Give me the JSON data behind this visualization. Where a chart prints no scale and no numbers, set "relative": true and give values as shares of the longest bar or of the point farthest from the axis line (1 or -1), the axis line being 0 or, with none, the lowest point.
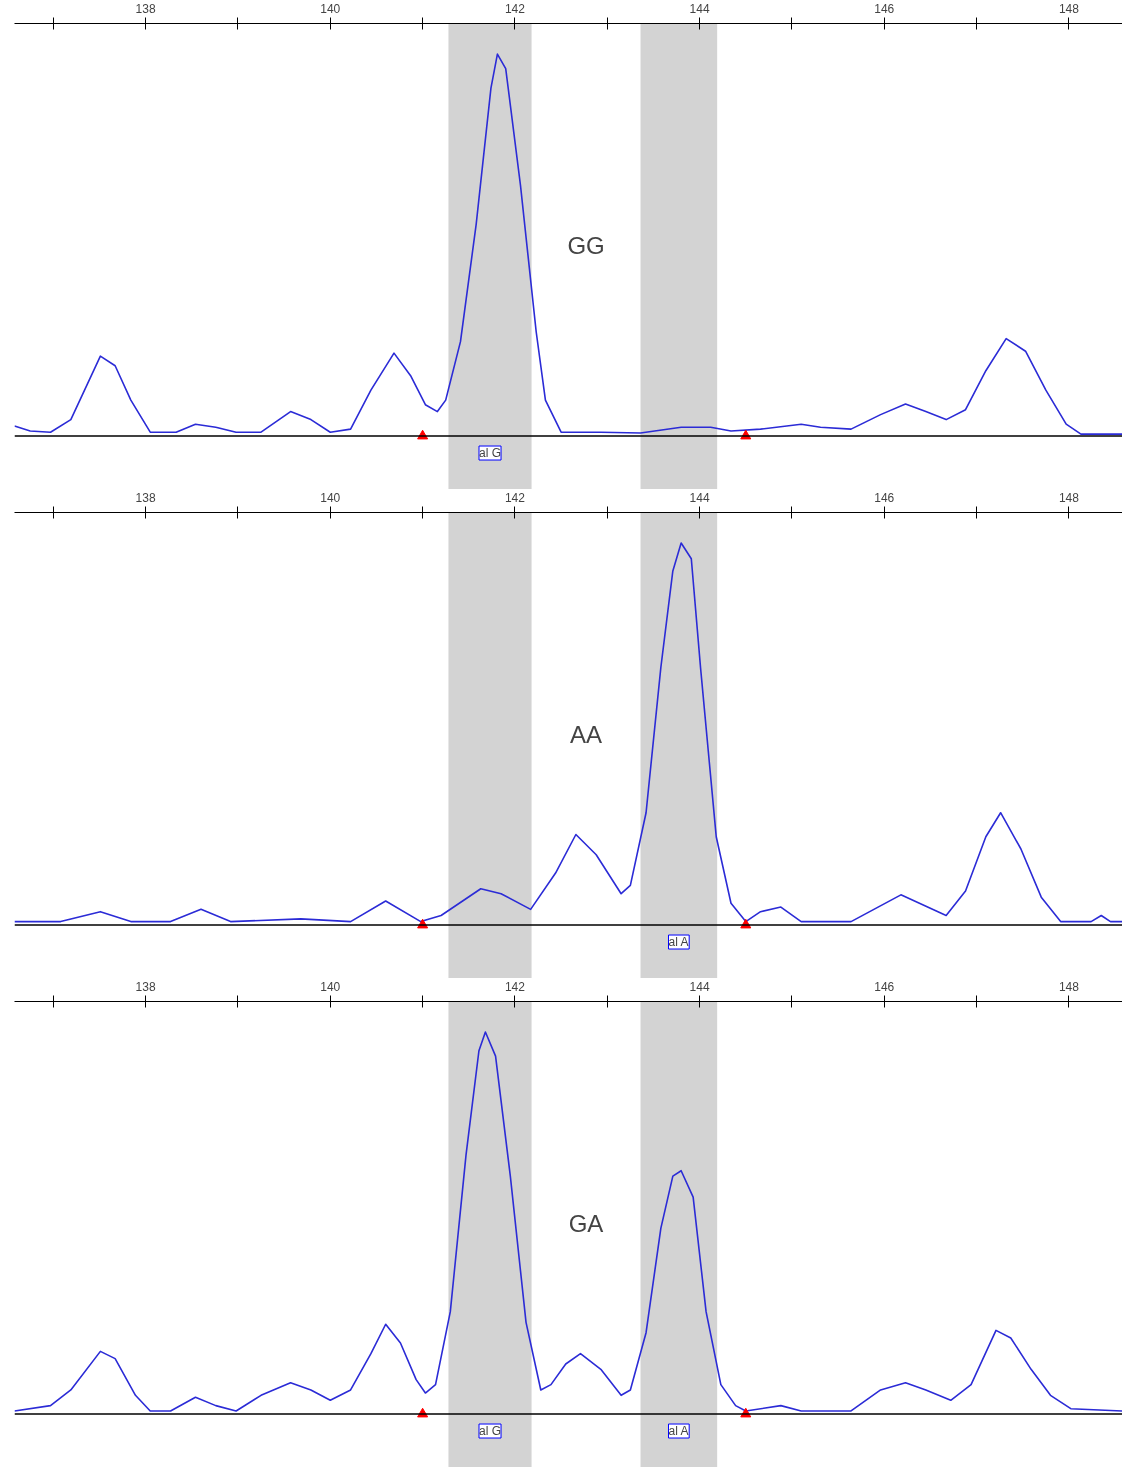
{
  "chart_data": [
    {
      "type": "line",
      "relative": true,
      "xlim": [
        136.58,
        148.58
      ],
      "xticks": [
        138,
        140,
        142,
        144,
        146,
        148
      ],
      "bands": [
        {
          "axis": "x",
          "from": 141.28,
          "to": 142.18,
          "color": "#d3d3d3",
          "label": "al G"
        },
        {
          "axis": "x",
          "from": 143.36,
          "to": 144.19,
          "color": "#d3d3d3"
        }
      ],
      "series": [
        {
          "color": "#2b2bd6",
          "x": [
            136.58,
            136.75,
            136.97,
            137.19,
            137.51,
            137.67,
            137.84,
            138.05,
            138.33,
            138.54,
            138.76,
            138.98,
            139.25,
            139.57,
            139.79,
            140.0,
            140.22,
            140.44,
            140.69,
            140.87,
            141.03,
            141.16,
            141.25,
            141.41,
            141.58,
            141.74,
            141.81,
            141.9,
            142.06,
            142.23,
            142.33,
            142.5,
            142.93,
            143.36,
            143.8,
            144.12,
            144.34,
            144.66,
            145.1,
            145.31,
            145.64,
            145.96,
            146.23,
            146.45,
            146.67,
            146.88,
            147.1,
            147.32,
            147.53,
            147.75,
            147.97,
            148.13,
            148.58
          ],
          "values": [
            0.026,
            0.013,
            0.01,
            0.043,
            0.209,
            0.184,
            0.094,
            0.01,
            0.01,
            0.031,
            0.023,
            0.01,
            0.01,
            0.064,
            0.043,
            0.01,
            0.018,
            0.12,
            0.217,
            0.158,
            0.082,
            0.064,
            0.094,
            0.247,
            0.554,
            0.911,
            1,
            0.962,
            0.656,
            0.273,
            0.094,
            0.01,
            0.01,
            0.008,
            0.023,
            0.023,
            0.013,
            0.018,
            0.031,
            0.023,
            0.018,
            0.056,
            0.084,
            0.064,
            0.043,
            0.069,
            0.171,
            0.255,
            0.222,
            0.12,
            0.031,
            0.005,
            0.005
          ]
        },
        {
          "type": "scatter",
          "color": "#ff0000",
          "marker": "triangle",
          "x": [
            141.0,
            144.5
          ],
          "values": [
            0,
            0
          ]
        }
      ],
      "annotations": [
        "GG"
      ]
    },
    {
      "type": "line",
      "relative": true,
      "xlim": [
        136.58,
        148.58
      ],
      "xticks": [
        138,
        140,
        142,
        144,
        146,
        148
      ],
      "bands": [
        {
          "axis": "x",
          "from": 141.28,
          "to": 142.18,
          "color": "#d3d3d3"
        },
        {
          "axis": "x",
          "from": 143.36,
          "to": 144.19,
          "color": "#d3d3d3",
          "label": "al A"
        }
      ],
      "series": [
        {
          "color": "#2b2bd6",
          "x": [
            136.58,
            137.08,
            137.51,
            137.84,
            138.27,
            138.6,
            138.92,
            139.68,
            140.22,
            140.6,
            140.98,
            141.2,
            141.63,
            141.85,
            142.17,
            142.44,
            142.66,
            142.88,
            143.15,
            143.25,
            143.42,
            143.58,
            143.71,
            143.8,
            143.91,
            144.01,
            144.18,
            144.34,
            144.5,
            144.66,
            144.88,
            145.1,
            145.64,
            146.18,
            146.67,
            146.88,
            147.1,
            147.26,
            147.48,
            147.7,
            147.91,
            148.24,
            148.35,
            148.45,
            148.58
          ],
          "values": [
            0.009,
            0.009,
            0.035,
            0.009,
            0.009,
            0.041,
            0.009,
            0.016,
            0.009,
            0.063,
            0.009,
            0.025,
            0.095,
            0.082,
            0.041,
            0.136,
            0.237,
            0.184,
            0.082,
            0.104,
            0.294,
            0.674,
            0.927,
            1,
            0.959,
            0.674,
            0.231,
            0.057,
            0.009,
            0.035,
            0.047,
            0.009,
            0.009,
            0.079,
            0.025,
            0.089,
            0.231,
            0.294,
            0.199,
            0.073,
            0.009,
            0.009,
            0.025,
            0.009,
            0.009
          ]
        },
        {
          "type": "scatter",
          "color": "#ff0000",
          "marker": "triangle",
          "x": [
            141.0,
            144.5
          ],
          "values": [
            0,
            0
          ]
        }
      ],
      "annotations": [
        "AA"
      ]
    },
    {
      "type": "line",
      "relative": true,
      "xlim": [
        136.58,
        148.58
      ],
      "xticks": [
        138,
        140,
        142,
        144,
        146,
        148
      ],
      "bands": [
        {
          "axis": "x",
          "from": 141.28,
          "to": 142.18,
          "color": "#d3d3d3",
          "label": "al G"
        },
        {
          "axis": "x",
          "from": 143.36,
          "to": 144.19,
          "color": "#d3d3d3",
          "label": "al A"
        }
      ],
      "series": [
        {
          "color": "#2b2bd6",
          "x": [
            136.58,
            136.97,
            137.19,
            137.51,
            137.67,
            137.89,
            138.05,
            138.27,
            138.54,
            138.76,
            138.98,
            139.25,
            139.57,
            139.79,
            140.0,
            140.22,
            140.44,
            140.6,
            140.76,
            140.93,
            141.03,
            141.14,
            141.3,
            141.47,
            141.61,
            141.68,
            141.79,
            141.95,
            142.12,
            142.28,
            142.39,
            142.55,
            142.71,
            142.93,
            143.15,
            143.25,
            143.42,
            143.58,
            143.71,
            143.8,
            143.93,
            144.07,
            144.23,
            144.39,
            144.5,
            144.88,
            145.1,
            145.64,
            145.96,
            146.23,
            146.45,
            146.72,
            146.94,
            147.21,
            147.37,
            147.59,
            147.8,
            148.02,
            148.58
          ],
          "values": [
            0.008,
            0.022,
            0.063,
            0.164,
            0.145,
            0.049,
            0.008,
            0.008,
            0.044,
            0.022,
            0.008,
            0.049,
            0.082,
            0.063,
            0.036,
            0.063,
            0.158,
            0.235,
            0.186,
            0.09,
            0.055,
            0.077,
            0.268,
            0.678,
            0.951,
            1,
            0.937,
            0.623,
            0.24,
            0.063,
            0.077,
            0.131,
            0.158,
            0.117,
            0.049,
            0.063,
            0.213,
            0.486,
            0.623,
            0.637,
            0.568,
            0.268,
            0.077,
            0.022,
            0.008,
            0.022,
            0.008,
            0.008,
            0.063,
            0.082,
            0.063,
            0.036,
            0.077,
            0.219,
            0.199,
            0.117,
            0.049,
            0.014,
            0.008
          ]
        },
        {
          "type": "scatter",
          "color": "#ff0000",
          "marker": "triangle",
          "x": [
            141.0,
            144.5
          ],
          "values": [
            0,
            0
          ]
        }
      ],
      "annotations": [
        "GA"
      ]
    }
  ]
}
